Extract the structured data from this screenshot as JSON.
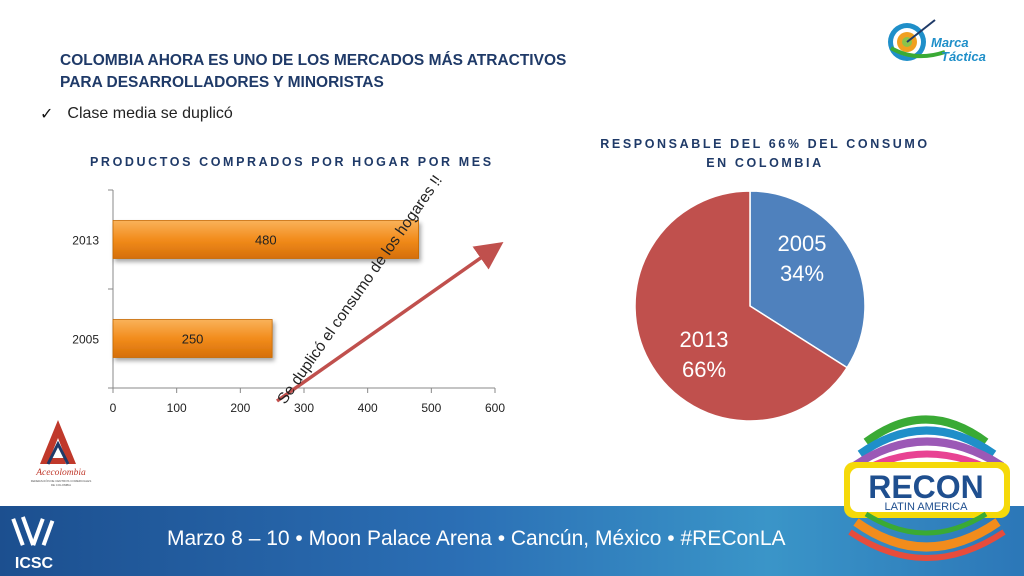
{
  "slide": {
    "title_line1": "COLOMBIA AHORA ES UNO DE LOS MERCADOS MÁS ATRACTIVOS",
    "title_line2": "PARA DESARROLLADORES Y MINORISTAS",
    "bullet_check": "✓",
    "bullet": "Clase media se duplicó"
  },
  "brand": {
    "marca_tactica_line1": "Marca",
    "marca_tactica_line2": "Táctica",
    "acecolombia": "Acecolombia",
    "acecolombia_sub1": "FEDERACIÓN DE CENTROS COMERCIALES",
    "acecolombia_sub2": "DE COLOMBIA",
    "recon": "RECON",
    "recon_sub": "LATIN AMERICA",
    "icsc": "ICSC"
  },
  "footer": {
    "text": "Marzo 8 – 10 • Moon Palace Arena • Cancún, México • #REConLA"
  },
  "annotation": {
    "arrow_text": "Se duplicó el consumo de los hogares !!"
  },
  "colors": {
    "bar_orange": "#f28c1c",
    "pie_blue": "#4f81bd",
    "pie_red": "#c0504d",
    "arrow_red": "#c0504d",
    "title_blue": "#1f3a68"
  },
  "chart_data": [
    {
      "type": "bar",
      "orientation": "horizontal",
      "title": "PRODUCTOS COMPRADOS POR HOGAR POR MES",
      "categories": [
        "2013",
        "2005"
      ],
      "values": [
        480,
        250
      ],
      "data_labels": [
        "480",
        "250"
      ],
      "xlim": [
        0,
        600
      ],
      "xticks": [
        "0",
        "100",
        "200",
        "300",
        "400",
        "500",
        "600"
      ],
      "xlabel": "",
      "ylabel": "",
      "grid": false
    },
    {
      "type": "pie",
      "title_line1": "RESPONSABLE DEL 66% DEL CONSUMO",
      "title_line2": "EN COLOMBIA",
      "slices": [
        {
          "label": "2005",
          "pct_label": "34%",
          "value": 34
        },
        {
          "label": "2013",
          "pct_label": "66%",
          "value": 66
        }
      ]
    }
  ]
}
